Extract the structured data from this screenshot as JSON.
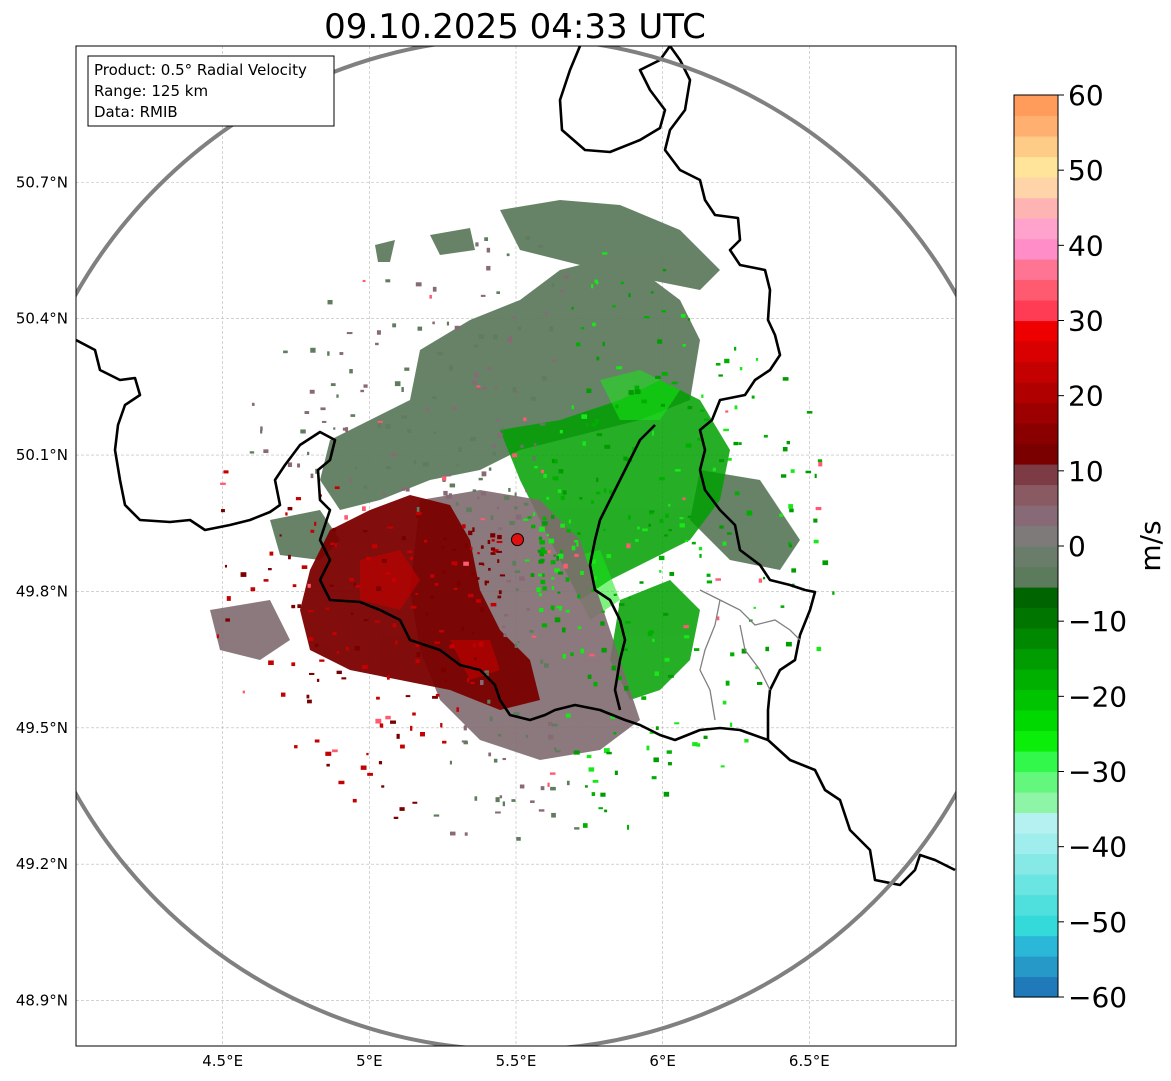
{
  "title": "09.10.2025 04:33 UTC",
  "info_box": {
    "product": "Product: 0.5° Radial Velocity",
    "range": "Range: 125 km",
    "source": "Data: RMIB"
  },
  "map": {
    "lon_range": [
      4.0,
      7.0
    ],
    "lat_range": [
      48.8,
      51.0
    ],
    "lat_ticks": [
      {
        "value": 50.7,
        "label": "50.7°N"
      },
      {
        "value": 50.4,
        "label": "50.4°N"
      },
      {
        "value": 50.1,
        "label": "50.1°N"
      },
      {
        "value": 49.8,
        "label": "49.8°N"
      },
      {
        "value": 49.5,
        "label": "49.5°N"
      },
      {
        "value": 49.2,
        "label": "49.2°N"
      },
      {
        "value": 48.9,
        "label": "48.9°N"
      }
    ],
    "lon_ticks": [
      {
        "value": 4.5,
        "label": "4.5°E"
      },
      {
        "value": 5.0,
        "label": "5°E"
      },
      {
        "value": 5.5,
        "label": "5.5°E"
      },
      {
        "value": 6.0,
        "label": "6°E"
      },
      {
        "value": 6.5,
        "label": "6.5°E"
      }
    ],
    "radar_site": {
      "lon": 5.505,
      "lat": 49.914
    },
    "range_ring_km": 125
  },
  "colorbar": {
    "label": "m/s",
    "min": -60,
    "max": 60,
    "tick_values": [
      60,
      50,
      40,
      30,
      20,
      10,
      0,
      -10,
      -20,
      -30,
      -40,
      -50,
      -60
    ],
    "tick_labels": [
      "60",
      "50",
      "40",
      "30",
      "20",
      "10",
      "0",
      "−10",
      "−20",
      "−30",
      "−40",
      "−50",
      "−60"
    ],
    "colors": [
      "#2079b8",
      "#2699c9",
      "#2bb8d8",
      "#34dada",
      "#4fe0de",
      "#6ae5e2",
      "#86e9e6",
      "#a0eded",
      "#b6f1f1",
      "#8ef5a6",
      "#63f77d",
      "#32f84b",
      "#0aee0a",
      "#00d900",
      "#00c400",
      "#00b000",
      "#009c00",
      "#008800",
      "#007500",
      "#006400",
      "#5c7a5c",
      "#6a7d6a",
      "#7e7a7a",
      "#876a75",
      "#8a5a63",
      "#7d3c45",
      "#7a0000",
      "#8a0000",
      "#9c0000",
      "#b00000",
      "#c40000",
      "#d80000",
      "#ee0000",
      "#ff3c54",
      "#ff5a70",
      "#ff7492",
      "#ff8ec8",
      "#ffa2cc",
      "#ffb4b4",
      "#ffd4a8",
      "#ffe49a",
      "#ffcc88",
      "#ffb070",
      "#ff9c5c"
    ]
  },
  "colors": {
    "outgoing_dark": "#7a0000",
    "incoming_green": "#00b000",
    "near_zero": "#5f7c5f",
    "site_marker": "#e01010",
    "range_ring": "#808080",
    "border": "#000000"
  }
}
